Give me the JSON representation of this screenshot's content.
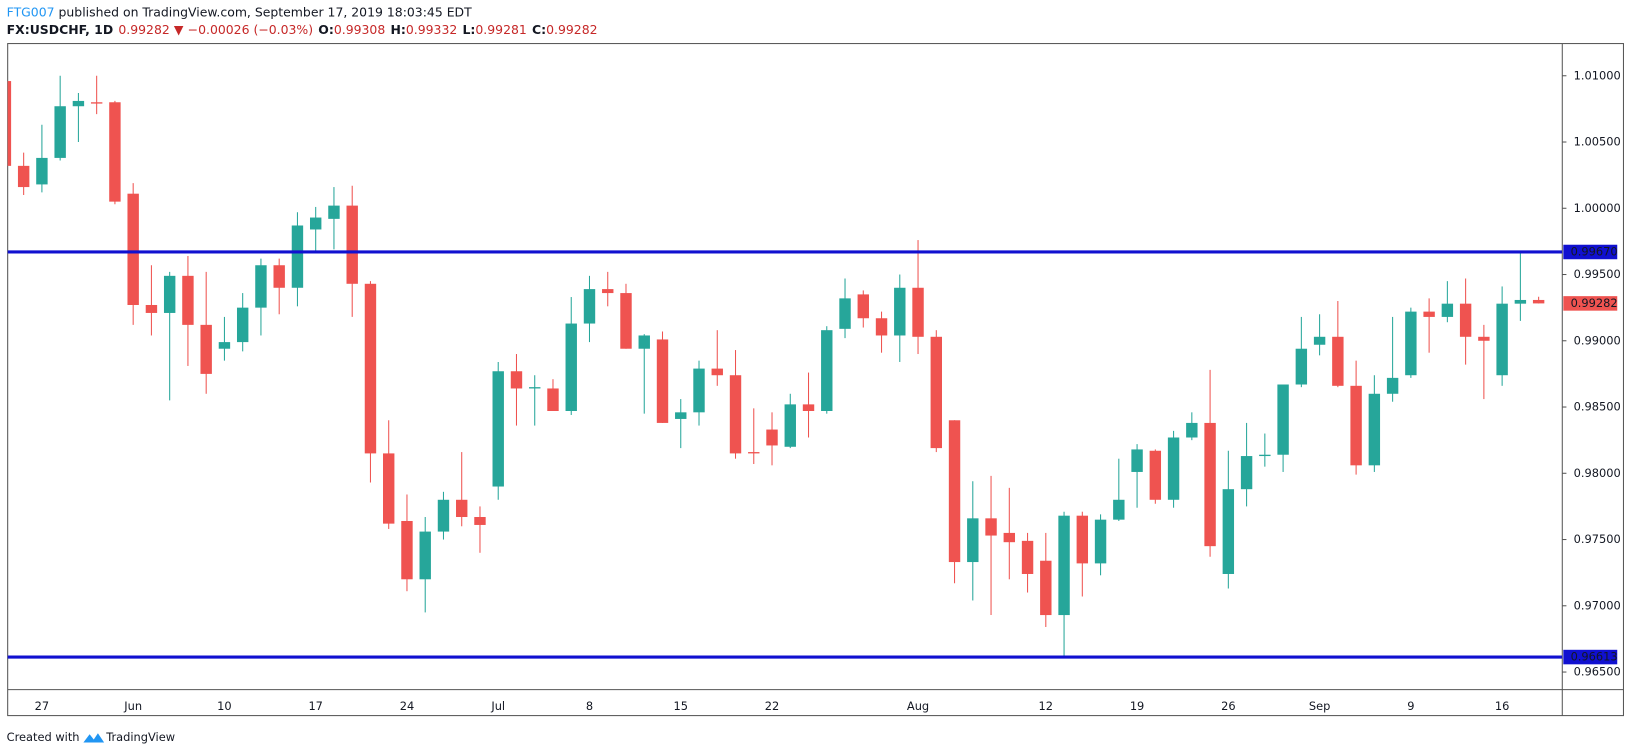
{
  "header": {
    "author": "FTG007",
    "published": " published on TradingView.com, September 17, 2019 18:03:45 EDT",
    "symbol": "FX:USDCHF, 1D",
    "last": "0.99282",
    "arrow": "▼",
    "change": "−0.00026 (−0.03%)",
    "ohlc": [
      {
        "key": "O:",
        "value": "0.99308"
      },
      {
        "key": "H:",
        "value": "0.99332"
      },
      {
        "key": "L:",
        "value": "0.99281"
      },
      {
        "key": "C:",
        "value": "0.99282"
      }
    ]
  },
  "footer": {
    "text": "Created with",
    "brand": "TradingView"
  },
  "chart_data": {
    "type": "candlestick",
    "categories": [
      null,
      null,
      "27",
      null,
      null,
      null,
      null,
      "Jun",
      null,
      null,
      null,
      null,
      "10",
      null,
      null,
      null,
      null,
      "17",
      null,
      null,
      null,
      null,
      "24",
      null,
      null,
      null,
      null,
      "Jul",
      null,
      null,
      null,
      null,
      "8",
      null,
      null,
      null,
      null,
      "15",
      null,
      null,
      null,
      null,
      "22",
      null,
      null,
      null,
      null,
      null,
      null,
      null,
      "Aug",
      null,
      null,
      null,
      null,
      null,
      null,
      "12",
      null,
      null,
      null,
      null,
      "19",
      null,
      null,
      null,
      null,
      "26",
      null,
      null,
      null,
      null,
      "Sep",
      null,
      null,
      null,
      null,
      "9",
      null,
      null,
      null,
      null,
      "16",
      null,
      null
    ],
    "open": [
      1.0096,
      1.0032,
      1.0018,
      1.0038,
      1.0077,
      1.008,
      1.008,
      1.0011,
      0.9927,
      0.9921,
      0.9949,
      0.9912,
      0.9894,
      0.9899,
      0.9925,
      0.9957,
      0.994,
      0.9984,
      0.9992,
      1.0002,
      0.9943,
      0.9815,
      0.9764,
      0.972,
      0.9756,
      0.978,
      0.9767,
      0.979,
      0.9877,
      0.9864,
      0.9864,
      0.9847,
      0.9913,
      0.9939,
      0.9936,
      0.9894,
      0.9901,
      0.9841,
      0.9846,
      0.9879,
      0.9874,
      0.9816,
      0.9833,
      0.982,
      0.9852,
      0.9847,
      0.9909,
      0.9935,
      0.9917,
      0.9904,
      0.994,
      0.9903,
      0.984,
      0.9733,
      0.9766,
      0.9755,
      0.9749,
      0.9734,
      0.9693,
      0.9768,
      0.9732,
      0.9765,
      0.9801,
      0.9817,
      0.978,
      0.9827,
      0.9838,
      0.9724,
      0.9788,
      0.9813,
      0.9814,
      0.9867,
      0.9897,
      0.9903,
      0.9866,
      0.9806,
      0.986,
      0.9874,
      0.9922,
      0.9918,
      0.9928,
      0.9903,
      0.9874,
      0.9928,
      0.99308
    ],
    "high": [
      1.0098,
      1.0042,
      1.0063,
      1.01,
      1.0087,
      1.01,
      1.0081,
      1.0019,
      0.9957,
      0.9952,
      0.9964,
      0.9952,
      0.9918,
      0.9936,
      0.9962,
      0.9962,
      0.9997,
      1.0001,
      1.0016,
      1.0017,
      0.9945,
      0.984,
      0.9784,
      0.9767,
      0.9786,
      0.9816,
      0.9775,
      0.9884,
      0.989,
      0.9874,
      0.9871,
      0.9933,
      0.9949,
      0.9952,
      0.9943,
      0.9905,
      0.9907,
      0.9856,
      0.9885,
      0.9908,
      0.9893,
      0.9849,
      0.9846,
      0.986,
      0.9876,
      0.9911,
      0.9947,
      0.9938,
      0.9922,
      0.995,
      0.9976,
      0.9908,
      0.984,
      0.9794,
      0.9798,
      0.9789,
      0.9755,
      0.9755,
      0.9771,
      0.9771,
      0.9769,
      0.9811,
      0.9822,
      0.9818,
      0.9832,
      0.9846,
      0.9878,
      0.9817,
      0.9838,
      0.983,
      0.9867,
      0.9918,
      0.992,
      0.993,
      0.9885,
      0.9874,
      0.9918,
      0.9925,
      0.9932,
      0.9945,
      0.9947,
      0.9912,
      0.9941,
      0.9967,
      0.99332
    ],
    "low": [
      1.003,
      1.001,
      1.0012,
      1.0036,
      1.005,
      1.0071,
      1.0003,
      0.9912,
      0.9904,
      0.9855,
      0.9881,
      0.986,
      0.9885,
      0.9892,
      0.9904,
      0.992,
      0.9926,
      0.9966,
      0.9969,
      0.9918,
      0.9793,
      0.9758,
      0.9711,
      0.9695,
      0.975,
      0.976,
      0.974,
      0.978,
      0.9836,
      0.9836,
      0.9847,
      0.9844,
      0.9899,
      0.9926,
      0.9894,
      0.9845,
      0.9838,
      0.9819,
      0.9836,
      0.9866,
      0.9811,
      0.9807,
      0.9806,
      0.9819,
      0.9827,
      0.9845,
      0.9902,
      0.991,
      0.9891,
      0.9884,
      0.989,
      0.9816,
      0.9717,
      0.9704,
      0.9693,
      0.972,
      0.971,
      0.9684,
      0.96613,
      0.9707,
      0.9723,
      0.9764,
      0.9774,
      0.9777,
      0.9774,
      0.9825,
      0.9737,
      0.9713,
      0.9775,
      0.9805,
      0.9801,
      0.9865,
      0.9889,
      0.9865,
      0.9799,
      0.9801,
      0.9854,
      0.9872,
      0.9891,
      0.9914,
      0.9882,
      0.9856,
      0.9866,
      0.9915,
      0.99281
    ],
    "close": [
      1.0032,
      1.0016,
      1.0038,
      1.0077,
      1.0081,
      1.0079,
      1.0005,
      0.9927,
      0.9921,
      0.9949,
      0.9912,
      0.9875,
      0.9899,
      0.9925,
      0.9957,
      0.994,
      0.9987,
      0.9993,
      1.0002,
      0.9943,
      0.9815,
      0.9762,
      0.972,
      0.9756,
      0.978,
      0.9767,
      0.9761,
      0.9877,
      0.9864,
      0.9865,
      0.9847,
      0.9913,
      0.9939,
      0.9936,
      0.9894,
      0.9904,
      0.9838,
      0.9846,
      0.9879,
      0.9874,
      0.9815,
      0.9815,
      0.9821,
      0.9852,
      0.9847,
      0.9908,
      0.9932,
      0.9917,
      0.9904,
      0.994,
      0.9903,
      0.9819,
      0.9733,
      0.9766,
      0.9753,
      0.9748,
      0.9724,
      0.9693,
      0.9768,
      0.9732,
      0.9765,
      0.978,
      0.9818,
      0.978,
      0.9827,
      0.9838,
      0.9745,
      0.9788,
      0.9813,
      0.9814,
      0.9867,
      0.9894,
      0.9903,
      0.9866,
      0.9806,
      0.986,
      0.9872,
      0.9922,
      0.9918,
      0.9928,
      0.9903,
      0.99,
      0.9928,
      0.99308,
      0.99282
    ],
    "up_color": "#26a69a",
    "down_color": "#ef5350",
    "ylim": [
      0.96367,
      1.01243
    ],
    "yticks": [
      {
        "value": 0.965,
        "label": "0.96500"
      },
      {
        "value": 0.97,
        "label": "0.97000"
      },
      {
        "value": 0.975,
        "label": "0.97500"
      },
      {
        "value": 0.98,
        "label": "0.98000"
      },
      {
        "value": 0.985,
        "label": "0.98500"
      },
      {
        "value": 0.99,
        "label": "0.99000"
      },
      {
        "value": 0.995,
        "label": "0.99500"
      },
      {
        "value": 1.0,
        "label": "1.00000"
      },
      {
        "value": 1.005,
        "label": "1.00500"
      },
      {
        "value": 1.01,
        "label": "1.01000"
      }
    ],
    "hlines": [
      {
        "value": 0.9967,
        "label": "0.99670",
        "color": "#1010d0"
      },
      {
        "value": 0.96613,
        "label": "0.96613",
        "color": "#1010d0"
      }
    ],
    "last_price": {
      "value": 0.99282,
      "label": "0.99282",
      "color": "#ef5350"
    },
    "grid": false
  }
}
